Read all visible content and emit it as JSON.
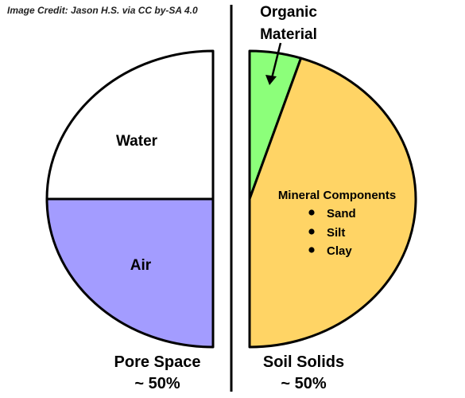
{
  "credit": "Image Credit: Jason H.S. via CC by-SA 4.0",
  "chart_data": {
    "type": "pie",
    "title": "",
    "halves": [
      {
        "name": "Pore Space",
        "percent_label": "~ 50%",
        "value": 50,
        "slices": [
          {
            "label": "Water",
            "value": 25,
            "color": "#a39cff"
          },
          {
            "label": "Air",
            "value": 25,
            "color": "#ffffff"
          }
        ]
      },
      {
        "name": "Soil Solids",
        "percent_label": "~ 50%",
        "value": 50,
        "slices": [
          {
            "label": "Organic Material",
            "label_lines": [
              "Organic",
              "Material"
            ],
            "value": 5,
            "color": "#8cff7a"
          },
          {
            "label": "Mineral Components",
            "value": 45,
            "color": "#ffd465",
            "items": [
              "Sand",
              "Silt",
              "Clay"
            ]
          }
        ]
      }
    ],
    "legend": "none",
    "grid": false
  }
}
